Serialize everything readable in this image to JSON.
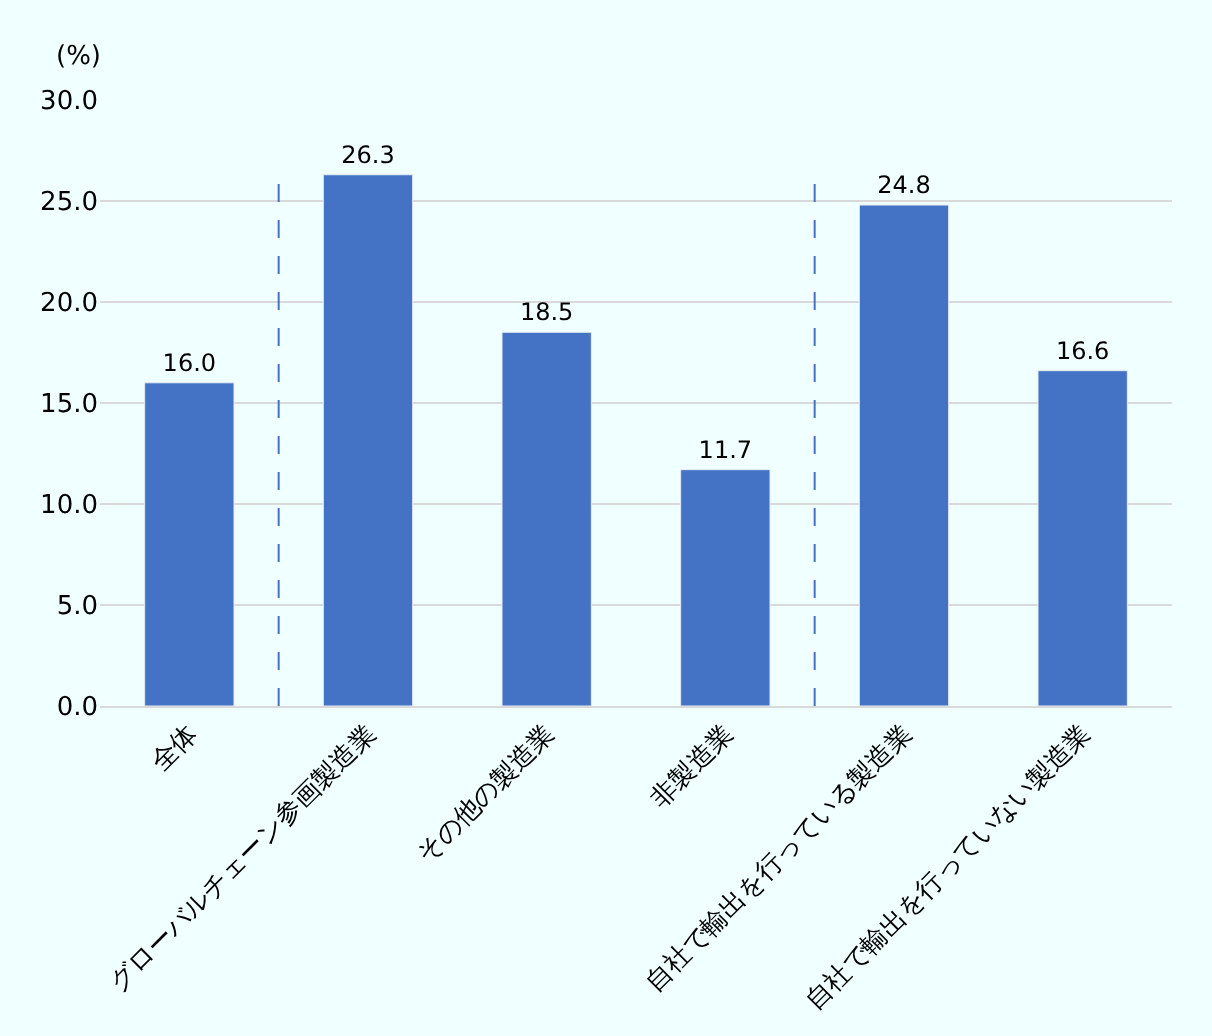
{
  "chart_data": {
    "type": "bar",
    "ylabel": "(%)",
    "categories": [
      "全体",
      "グローバルチェーン参画製造業",
      "その他の製造業",
      "非製造業",
      "自社で輸出を行っている製造業",
      "自社で輸出を行っていない製造業"
    ],
    "series": [
      {
        "color": "#4472c4",
        "values": [
          16.0,
          26.3,
          18.5,
          11.7,
          24.8,
          16.6
        ],
        "value_labels": [
          "16.0",
          "26.3",
          "18.5",
          "11.7",
          "24.8",
          "16.6"
        ]
      }
    ],
    "ylim": [
      0,
      30
    ],
    "yticks": [
      {
        "value": 0,
        "label": "0.0"
      },
      {
        "value": 5,
        "label": "5.0"
      },
      {
        "value": 10,
        "label": "10.0"
      },
      {
        "value": 15,
        "label": "15.0"
      },
      {
        "value": 20,
        "label": "20.0"
      },
      {
        "value": 25,
        "label": "25.0"
      },
      {
        "value": 30,
        "label": "30.0"
      }
    ],
    "grid": "y"
  }
}
